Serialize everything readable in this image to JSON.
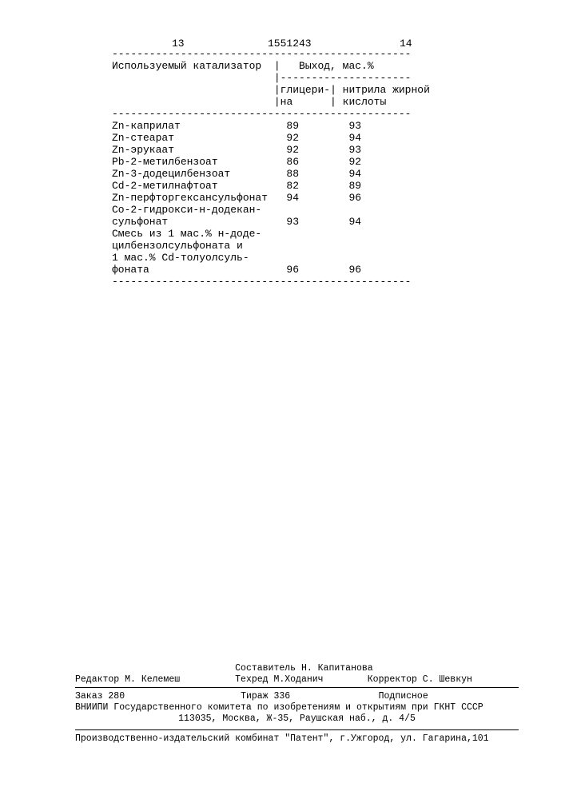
{
  "header": {
    "page_left": "13",
    "doc_number": "1551243",
    "page_right": "14"
  },
  "table": {
    "col_headers": {
      "catalyst": "Используемый катализатор",
      "yield": "Выход, мас.%",
      "glycerin_1": "глицери-",
      "glycerin_2": "на",
      "nitrile_1": "нитрила жирной",
      "nitrile_2": "кислоты"
    },
    "rows": [
      {
        "name": "Zn-каприлат",
        "v1": "89",
        "v2": "93"
      },
      {
        "name": "Zn-стеарат",
        "v1": "92",
        "v2": "94"
      },
      {
        "name": "Zn-эрукаат",
        "v1": "92",
        "v2": "93"
      },
      {
        "name": "Pb-2-метилбензоат",
        "v1": "86",
        "v2": "92"
      },
      {
        "name": "Zn-3-додецилбензоат",
        "v1": "88",
        "v2": "94"
      },
      {
        "name": "Cd-2-метилнафтоат",
        "v1": "82",
        "v2": "89"
      },
      {
        "name": "Zn-перфторгексансульфонат",
        "v1": "94",
        "v2": "96"
      },
      {
        "name": "Co-2-гидрокси-н-додекан-",
        "v1": "",
        "v2": ""
      },
      {
        "name": "сульфонат",
        "v1": "93",
        "v2": "94"
      },
      {
        "name": "Смесь из 1 мас.% н-доде-",
        "v1": "",
        "v2": ""
      },
      {
        "name": "цилбензолсульфоната и",
        "v1": "",
        "v2": ""
      },
      {
        "name": "1 мас.% Cd-толуолсуль-",
        "v1": "",
        "v2": ""
      },
      {
        "name": "фоната",
        "v1": "96",
        "v2": "96"
      }
    ],
    "columns": {
      "name_width": 26,
      "v1_width": 8,
      "v2_width": 10
    }
  },
  "footer": {
    "compiler": "Составитель Н. Капитанова",
    "editor": "Редактор М. Келемеш",
    "techred": "Техред М.Ходанич",
    "corrector": "Корректор С. Шевкун",
    "order": "Заказ 280",
    "circulation": "Тираж 336",
    "subscription": "Подписное",
    "org_line1": "ВНИИПИ Государственного комитета по изобретениям и открытиям при ГКНТ СССР",
    "org_line2": "113035, Москва, Ж-35, Раушская наб., д. 4/5",
    "prod_line": "Производственно-издательский комбинат \"Патент\", г.Ужгород, ул. Гагарина,101"
  }
}
